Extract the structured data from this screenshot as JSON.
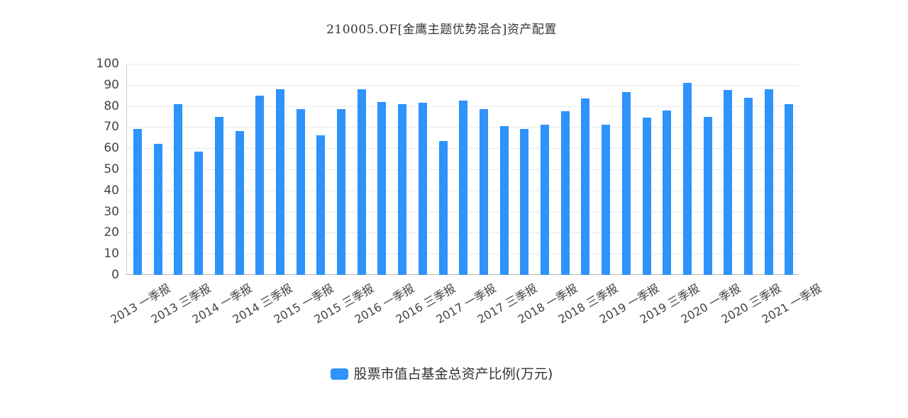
{
  "chart_data": {
    "type": "bar",
    "title": "210005.OF[金鹰主题优势混合]资产配置",
    "xlabel": "",
    "ylabel": "",
    "ylim": [
      0,
      100
    ],
    "yticks": [
      0,
      10,
      20,
      30,
      40,
      50,
      60,
      70,
      80,
      90,
      100
    ],
    "grid": true,
    "legend_position": "bottom",
    "x_tick_labels_visible": [
      "2013 一季报",
      "2013 三季报",
      "2014 一季报",
      "2014 三季报",
      "2015 一季报",
      "2015 三季报",
      "2016 一季报",
      "2016 三季报",
      "2017 一季报",
      "2017 三季报",
      "2018 一季报",
      "2018 三季报",
      "2019 一季报",
      "2019 三季报",
      "2020 一季报",
      "2020 三季报",
      "2021 一季报"
    ],
    "x_tick_label_every": 2,
    "series": [
      {
        "name": "股票市值占基金总资产比例(万元)",
        "color": "#2e93fa",
        "values": [
          69,
          62,
          81,
          58.5,
          75,
          68,
          85,
          88,
          78.5,
          66,
          78.5,
          88,
          82,
          81,
          81.5,
          63.5,
          82.5,
          78.5,
          70.5,
          69,
          71,
          77.5,
          83.5,
          71,
          86.5,
          74.5,
          78,
          91,
          75,
          87.5,
          84,
          88,
          81
        ]
      }
    ]
  },
  "title": "210005.OF[金鹰主题优势混合]资产配置",
  "legend": {
    "label": "股票市值占基金总资产比例(万元)"
  }
}
